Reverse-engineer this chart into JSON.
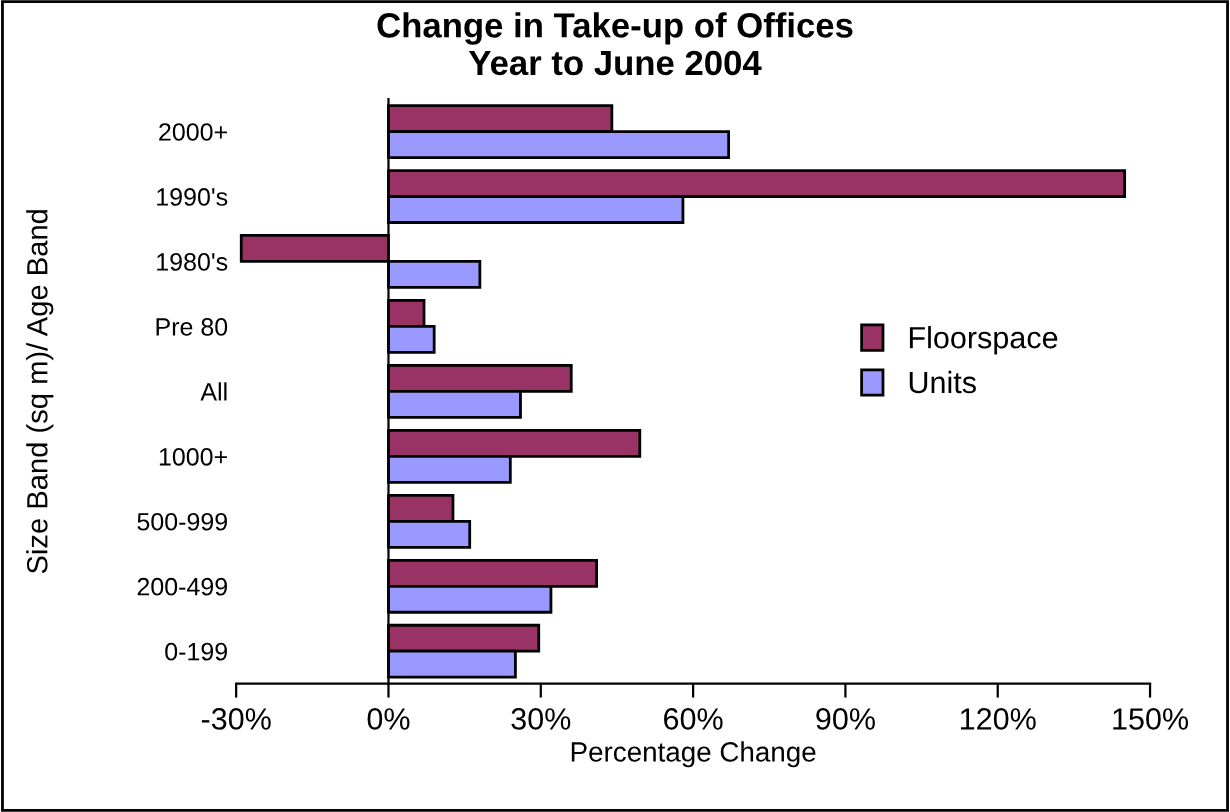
{
  "chart_data": {
    "type": "bar",
    "orientation": "horizontal",
    "title": "Change in Take-up of Offices\nYear to June 2004",
    "xlabel": "Percentage Change",
    "ylabel": "Size Band (sq m)/ Age Band",
    "categories": [
      "2000+",
      "1990's",
      "1980's",
      "Pre 80",
      "All",
      "1000+",
      "500-999",
      "200-499",
      "0-199"
    ],
    "series": [
      {
        "name": "Floorspace",
        "color": "#993366",
        "values": [
          44,
          145,
          -29,
          7,
          36,
          49.5,
          12.7,
          41,
          29.6
        ]
      },
      {
        "name": "Units",
        "color": "#9999ff",
        "values": [
          67,
          58,
          18,
          9,
          26,
          24,
          16,
          32,
          25
        ]
      }
    ],
    "xlim": [
      -30,
      150
    ],
    "xticks": [
      {
        "value": -30,
        "label": "-30%"
      },
      {
        "value": 0,
        "label": "0%"
      },
      {
        "value": 30,
        "label": "30%"
      },
      {
        "value": 60,
        "label": "60%"
      },
      {
        "value": 90,
        "label": "90%"
      },
      {
        "value": 120,
        "label": "120%"
      },
      {
        "value": 150,
        "label": "150%"
      }
    ],
    "legend": "right"
  }
}
